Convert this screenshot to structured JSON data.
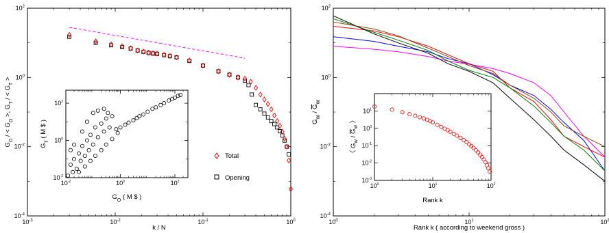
{
  "chart_data": [
    {
      "type": "scatter",
      "xlabel": "k / N",
      "ylabel_parts": [
        "G",
        "O",
        " / < G",
        "O",
        " >, G",
        "T",
        " / < G",
        "T",
        " >"
      ],
      "xscale": "log",
      "yscale": "log",
      "xlim": [
        0.001,
        1
      ],
      "ylim": [
        0.0001,
        100
      ],
      "x_ticks": [
        "10",
        "10",
        "10",
        "10"
      ],
      "x_tick_exp": [
        "-3",
        "-2",
        "-1",
        "0"
      ],
      "y_ticks": [
        "10",
        "10",
        "10",
        "10"
      ],
      "y_tick_exp": [
        "-4",
        "-2",
        "0",
        "2"
      ],
      "legend": {
        "placement": "lower-right",
        "entries": [
          "Total",
          "Opening"
        ]
      },
      "series": [
        {
          "name": "Total",
          "marker": "diamond",
          "color": "#ff0000",
          "x": [
            0.003,
            0.006,
            0.009,
            0.012,
            0.015,
            0.018,
            0.021,
            0.024,
            0.027,
            0.03,
            0.036,
            0.042,
            0.05,
            0.07,
            0.1,
            0.15,
            0.2,
            0.25,
            0.3,
            0.35,
            0.4,
            0.45,
            0.5,
            0.55,
            0.6,
            0.65,
            0.7,
            0.75,
            0.8,
            0.85,
            0.9,
            0.95,
            1.0
          ],
          "y": [
            17,
            11,
            9,
            8,
            7,
            6,
            5.6,
            5.2,
            5,
            4.9,
            4.5,
            4.2,
            3.8,
            3.1,
            2.2,
            1.5,
            1.2,
            1.0,
            0.92,
            0.75,
            0.5,
            0.32,
            0.23,
            0.17,
            0.12,
            0.08,
            0.055,
            0.04,
            0.027,
            0.017,
            0.01,
            0.004,
            0.0006
          ]
        },
        {
          "name": "Opening",
          "marker": "square",
          "color": "#000000",
          "x": [
            0.003,
            0.006,
            0.009,
            0.012,
            0.015,
            0.018,
            0.021,
            0.024,
            0.027,
            0.03,
            0.036,
            0.042,
            0.05,
            0.07,
            0.1,
            0.15,
            0.2,
            0.25,
            0.3,
            0.33,
            0.36,
            0.4,
            0.45,
            0.5,
            0.55,
            0.6,
            0.65,
            0.7,
            0.75,
            0.8,
            0.85,
            0.9,
            0.95
          ],
          "y": [
            15,
            10,
            8.5,
            7.5,
            6.8,
            6,
            5.5,
            5.1,
            4.9,
            4.8,
            4.4,
            4.1,
            3.8,
            3.0,
            2.2,
            1.5,
            1.2,
            1.0,
            0.8,
            0.6,
            0.32,
            0.16,
            0.12,
            0.09,
            0.07,
            0.055,
            0.045,
            0.036,
            0.028,
            0.021,
            0.015,
            0.01,
            0.006
          ]
        }
      ],
      "fit_line": {
        "color": "#ff00ff",
        "style": "dashed",
        "x": [
          0.003,
          0.3
        ],
        "y": [
          28,
          3.6
        ]
      },
      "inset": {
        "type": "scatter",
        "xlabel_parts": [
          "G",
          "O",
          " ( M $ )"
        ],
        "ylabel_parts": [
          "G",
          "T",
          " ( M $ )"
        ],
        "xscale": "log",
        "yscale": "log",
        "xlim": [
          0.01,
          300
        ],
        "ylim": [
          0.01,
          500
        ],
        "x_ticks": [
          "10",
          "10",
          "10"
        ],
        "x_tick_exp": [
          "-2",
          "0",
          "2"
        ],
        "y_ticks": [
          "10",
          "10",
          "10"
        ],
        "y_tick_exp": [
          "-2",
          "0",
          "2"
        ],
        "marker": "circle",
        "color": "#000000",
        "x": [
          0.012,
          0.015,
          0.018,
          0.02,
          0.025,
          0.03,
          0.035,
          0.04,
          0.05,
          0.06,
          0.07,
          0.08,
          0.1,
          0.12,
          0.15,
          0.2,
          0.25,
          0.3,
          0.4,
          0.5,
          0.7,
          1,
          1.5,
          2,
          3,
          4,
          5,
          7,
          10,
          15,
          20,
          30,
          40,
          60,
          80,
          100,
          130,
          160,
          0.03,
          0.05,
          0.08,
          0.12,
          0.2,
          0.3,
          0.5,
          0.8,
          0.06,
          0.1,
          0.15,
          0.25,
          0.04,
          0.02,
          0.015,
          0.35
        ],
        "y": [
          0.012,
          0.05,
          0.02,
          0.1,
          0.03,
          0.2,
          0.08,
          0.5,
          0.15,
          1,
          0.3,
          2,
          0.6,
          5,
          1.5,
          8,
          3,
          15,
          5,
          20,
          4,
          5,
          7,
          9,
          12,
          16,
          20,
          25,
          35,
          50,
          60,
          80,
          100,
          140,
          170,
          200,
          250,
          280,
          0.02,
          0.04,
          0.08,
          0.15,
          0.3,
          0.6,
          1.2,
          2.5,
          10,
          30,
          40,
          50,
          3,
          0.6,
          0.3,
          30
        ]
      }
    },
    {
      "type": "line",
      "xlabel": "Rank k  ( according to weekend gross )",
      "ylabel_parts": [
        "G",
        "W",
        " / ",
        "G",
        "W"
      ],
      "xscale": "log",
      "yscale": "log",
      "xlim": [
        1,
        100
      ],
      "ylim": [
        0.0001,
        100
      ],
      "x_ticks": [
        "10",
        "10",
        "10"
      ],
      "x_tick_exp": [
        "0",
        "1",
        "2"
      ],
      "y_ticks": [
        "10",
        "10",
        "10",
        "10"
      ],
      "y_tick_exp": [
        "-4",
        "-2",
        "0",
        "2"
      ],
      "series": [
        {
          "color": "#ff00ff",
          "x": [
            1,
            2,
            3,
            5,
            7,
            10,
            15,
            20,
            30,
            40,
            50,
            70,
            100
          ],
          "y": [
            8,
            6.5,
            5.5,
            4,
            3,
            2.4,
            1.8,
            1.3,
            0.7,
            0.3,
            0.1,
            0.02,
            0.005
          ]
        },
        {
          "color": "#0000ff",
          "x": [
            1,
            2,
            3,
            5,
            7,
            10,
            15,
            20,
            30,
            40,
            50,
            70,
            100
          ],
          "y": [
            15,
            11,
            8,
            5.5,
            3.5,
            2.5,
            1.2,
            0.6,
            0.3,
            0.12,
            0.05,
            0.015,
            0.002
          ]
        },
        {
          "color": "#ff0000",
          "x": [
            1,
            2,
            3,
            5,
            7,
            10,
            15,
            20,
            30,
            40,
            50,
            70,
            100
          ],
          "y": [
            30,
            22,
            15,
            8,
            4.5,
            2.5,
            1.5,
            0.5,
            0.2,
            0.06,
            0.02,
            0.01,
            0.005
          ]
        },
        {
          "color": "#008000",
          "x": [
            1,
            2,
            3,
            5,
            7,
            10,
            15,
            20,
            30,
            40,
            50,
            70,
            100
          ],
          "y": [
            50,
            20,
            12,
            6,
            3,
            1.6,
            1.0,
            0.5,
            0.15,
            0.05,
            0.02,
            0.008,
            0.002
          ]
        },
        {
          "color": "#000000",
          "x": [
            1,
            2,
            3,
            5,
            7,
            10,
            15,
            20,
            30,
            40,
            50,
            70,
            100
          ],
          "y": [
            60,
            18,
            10,
            5,
            2.5,
            1.5,
            0.7,
            0.25,
            0.06,
            0.02,
            0.008,
            0.003,
            0.001
          ]
        },
        {
          "color": "#8b4513",
          "x": [
            1,
            2,
            3,
            5,
            7,
            10,
            15,
            20,
            30,
            40,
            50,
            70,
            100
          ],
          "y": [
            40,
            25,
            16,
            7,
            4,
            2.2,
            1.3,
            0.6,
            0.25,
            0.1,
            0.04,
            0.02,
            0.01
          ]
        }
      ],
      "inset": {
        "type": "scatter",
        "xlabel": "Rank k",
        "ylabel_parts": [
          "〈 G",
          "W",
          " / ",
          "G",
          "W",
          " 〉"
        ],
        "xscale": "log",
        "yscale": "log",
        "xlim": [
          1,
          100
        ],
        "ylim": [
          0.001,
          100
        ],
        "x_ticks": [
          "10",
          "10",
          "10"
        ],
        "x_tick_exp": [
          "0",
          "1",
          "2"
        ],
        "y_ticks": [
          "10",
          "10",
          "10",
          "10",
          "10"
        ],
        "y_tick_exp": [
          "-3",
          "-2",
          "-1",
          "0",
          "1"
        ],
        "marker": "circle",
        "color": "#ff0000",
        "x": [
          1,
          2,
          3,
          4,
          5,
          6,
          7,
          8,
          9,
          10,
          12,
          14,
          16,
          18,
          20,
          23,
          26,
          30,
          34,
          38,
          42,
          46,
          50,
          55,
          60,
          65,
          70,
          75,
          80,
          85,
          90,
          95
        ],
        "y": [
          18,
          12,
          8.5,
          6.5,
          5.3,
          4.4,
          3.7,
          3.1,
          2.6,
          2.2,
          1.6,
          1.2,
          0.95,
          0.78,
          0.64,
          0.48,
          0.38,
          0.28,
          0.21,
          0.16,
          0.12,
          0.095,
          0.075,
          0.055,
          0.04,
          0.03,
          0.022,
          0.016,
          0.011,
          0.0075,
          0.005,
          0.0032
        ]
      }
    }
  ]
}
